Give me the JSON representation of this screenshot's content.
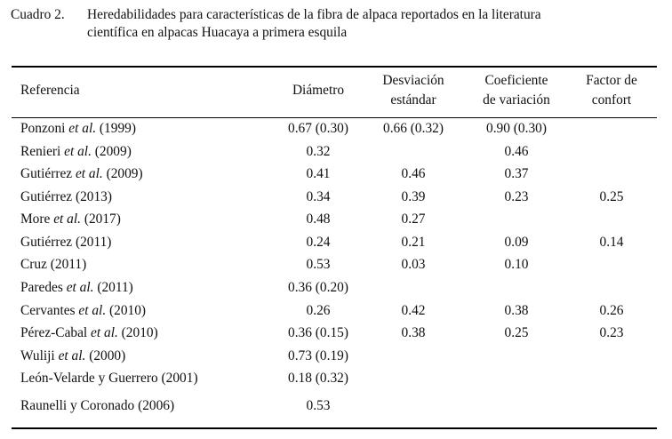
{
  "caption": {
    "number": "Cuadro 2.",
    "line1": "Heredabilidades para características de la fibra de alpaca reportados en la literatura",
    "line2": "científica en alpacas Huacaya a primera esquila"
  },
  "headers": {
    "referencia": "Referencia",
    "diametro": "Diámetro",
    "desviacion_1": "Desviación",
    "desviacion_2": "estándar",
    "coeficiente_1": "Coeficiente",
    "coeficiente_2": "de variación",
    "factor_1": "Factor de",
    "factor_2": "confort"
  },
  "rows": [
    {
      "author": "Ponzoni",
      "etal": " et al.",
      "year": " (1999)",
      "diametro": "0.67 (0.30)",
      "desviacion": "0.66 (0.32)",
      "coeficiente": "0.90 (0.30)",
      "factor": ""
    },
    {
      "author": "Renieri",
      "etal": " et al.",
      "year": " (2009)",
      "diametro": "0.32",
      "desviacion": "",
      "coeficiente": "0.46",
      "factor": ""
    },
    {
      "author": "Gutiérrez",
      "etal": " et al.",
      "year": " (2009)",
      "diametro": "0.41",
      "desviacion": "0.46",
      "coeficiente": "0.37",
      "factor": ""
    },
    {
      "author": "Gutiérrez",
      "etal": "",
      "year": " (2013)",
      "diametro": "0.34",
      "desviacion": "0.39",
      "coeficiente": "0.23",
      "factor": "0.25"
    },
    {
      "author": "More",
      "etal": " et al.",
      "year": " (2017)",
      "diametro": "0.48",
      "desviacion": "0.27",
      "coeficiente": "",
      "factor": ""
    },
    {
      "author": "Gutiérrez",
      "etal": "",
      "year": " (2011)",
      "diametro": "0.24",
      "desviacion": "0.21",
      "coeficiente": "0.09",
      "factor": "0.14"
    },
    {
      "author": "Cruz",
      "etal": "",
      "year": " (2011)",
      "diametro": "0.53",
      "desviacion": "0.03",
      "coeficiente": "0.10",
      "factor": ""
    },
    {
      "author": "Paredes",
      "etal": " et al.",
      "year": " (2011)",
      "diametro": "0.36 (0.20)",
      "desviacion": "",
      "coeficiente": "",
      "factor": ""
    },
    {
      "author": "Cervantes",
      "etal": " et al.",
      "year": " (2010)",
      "diametro": "0.26",
      "desviacion": "0.42",
      "coeficiente": "0.38",
      "factor": "0.26"
    },
    {
      "author": "Pérez-Cabal",
      "etal": " et al.",
      "year": " (2010)",
      "diametro": "0.36 (0.15)",
      "desviacion": "0.38",
      "coeficiente": "0.25",
      "factor": "0.23"
    },
    {
      "author": "Wuliji",
      "etal": " et al.",
      "year": " (2000)",
      "diametro": "0.73 (0.19)",
      "desviacion": "",
      "coeficiente": "",
      "factor": ""
    },
    {
      "author": "León-Velarde y Guerrero",
      "etal": "",
      "year": " (2001)",
      "diametro": "0.18 (0.32)",
      "desviacion": "",
      "coeficiente": "",
      "factor": ""
    },
    {
      "author": "Raunelli y Coronado",
      "etal": "",
      "year": " (2006)",
      "diametro": "0.53",
      "desviacion": "",
      "coeficiente": "",
      "factor": ""
    }
  ]
}
